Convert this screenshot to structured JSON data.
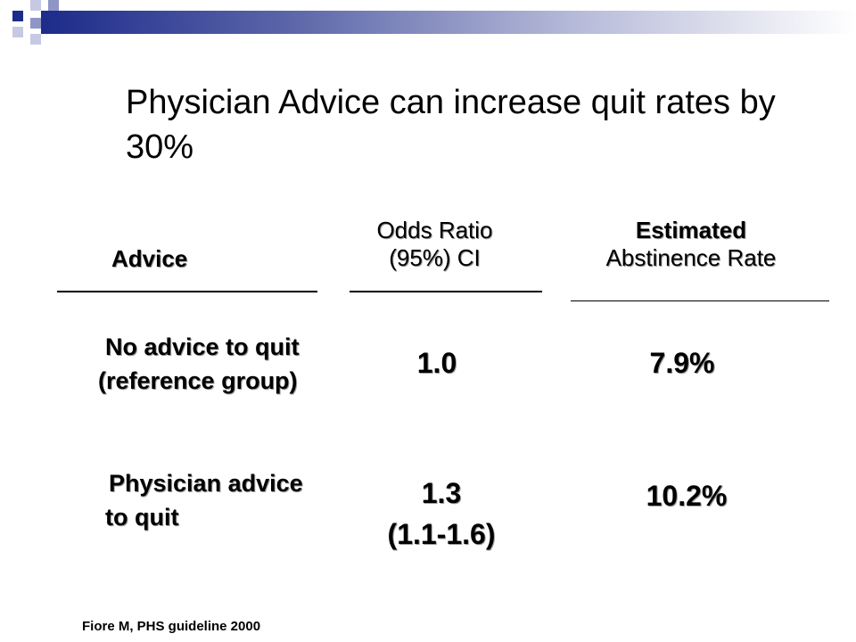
{
  "slide": {
    "title": "Physician Advice can increase quit rates by 30%",
    "accent_colors": {
      "dark_blue": "#1d2b8a",
      "light_blue": "#b5b9d8",
      "mid_blue": "#5a65a8"
    }
  },
  "table": {
    "headers": {
      "advice": "Advice",
      "odds_ratio_line1": "Odds Ratio",
      "odds_ratio_line2": "(95%) CI",
      "abstinence_line1": "Estimated",
      "abstinence_line2": "Abstinence Rate"
    },
    "rows": [
      {
        "label_line1": "No advice to quit",
        "label_line2": "(reference group)",
        "odds_ratio": "1.0",
        "ci": "",
        "abstinence_rate": "7.9%"
      },
      {
        "label_line1": "Physician advice",
        "label_line2": "to quit",
        "odds_ratio": "1.3",
        "ci": "(1.1-1.6)",
        "abstinence_rate": "10.2%"
      }
    ]
  },
  "footnote": "Fiore M, PHS guideline 2000"
}
